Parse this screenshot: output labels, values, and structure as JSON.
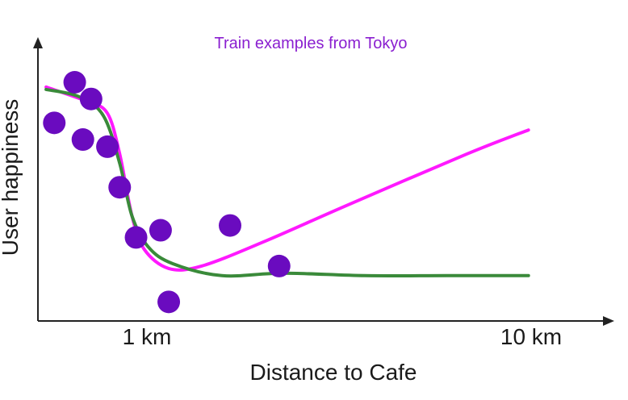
{
  "chart_data": {
    "type": "scatter",
    "title": "Train examples from Tokyo",
    "xlabel": "Distance to Cafe",
    "ylabel": "User happiness",
    "x_ticks": [
      "1 km",
      "10 km"
    ],
    "xlim": [
      0,
      12.5
    ],
    "ylim": [
      0,
      10
    ],
    "grid": false,
    "points": [
      {
        "x": 0.4,
        "y": 8.3
      },
      {
        "x": 0.9,
        "y": 10.0
      },
      {
        "x": 1.3,
        "y": 9.3
      },
      {
        "x": 1.1,
        "y": 7.6
      },
      {
        "x": 1.7,
        "y": 7.3
      },
      {
        "x": 2.0,
        "y": 5.6
      },
      {
        "x": 2.4,
        "y": 3.5
      },
      {
        "x": 3.0,
        "y": 3.8
      },
      {
        "x": 3.2,
        "y": 0.8
      },
      {
        "x": 4.7,
        "y": 4.0
      },
      {
        "x": 5.9,
        "y": 2.3
      }
    ],
    "series": [
      {
        "values": [
          {
            "x": 0.2,
            "y": 9.8
          },
          {
            "x": 1.2,
            "y": 9.2
          },
          {
            "x": 1.7,
            "y": 8.7
          },
          {
            "x": 2.0,
            "y": 7.0
          },
          {
            "x": 2.3,
            "y": 4.4
          },
          {
            "x": 2.6,
            "y": 3.0
          },
          {
            "x": 3.2,
            "y": 2.2
          },
          {
            "x": 4.0,
            "y": 2.3
          },
          {
            "x": 5.5,
            "y": 3.3
          },
          {
            "x": 7.5,
            "y": 4.8
          },
          {
            "x": 10.5,
            "y": 7.0
          },
          {
            "x": 12.0,
            "y": 8.0
          }
        ]
      },
      {
        "values": [
          {
            "x": 0.2,
            "y": 9.7
          },
          {
            "x": 1.0,
            "y": 9.4
          },
          {
            "x": 1.6,
            "y": 8.6
          },
          {
            "x": 2.0,
            "y": 6.6
          },
          {
            "x": 2.3,
            "y": 4.4
          },
          {
            "x": 2.7,
            "y": 3.1
          },
          {
            "x": 3.3,
            "y": 2.4
          },
          {
            "x": 4.5,
            "y": 1.9
          },
          {
            "x": 6.0,
            "y": 2.0
          },
          {
            "x": 8.0,
            "y": 1.9
          },
          {
            "x": 10.0,
            "y": 1.9
          },
          {
            "x": 12.0,
            "y": 1.9
          }
        ]
      }
    ],
    "colors": {
      "points": "#6a0bbf",
      "magenta_curve": "#ff19ff",
      "green_curve": "#3a8a3a",
      "title": "#8a1fd0",
      "axis": "#222222"
    }
  }
}
